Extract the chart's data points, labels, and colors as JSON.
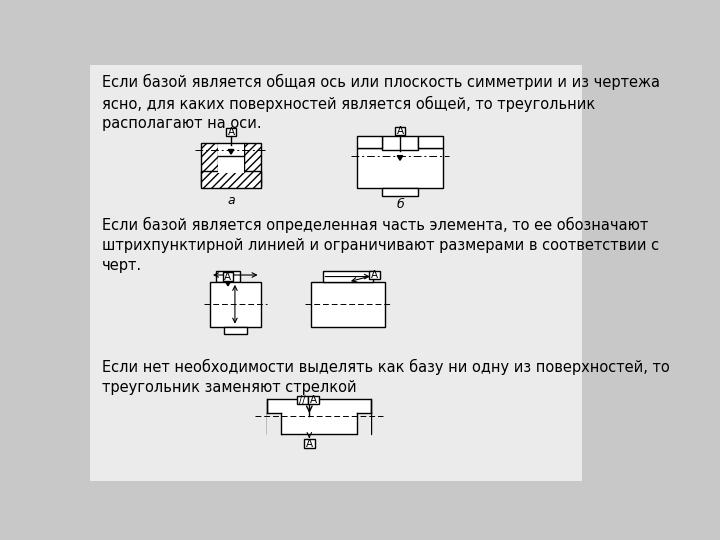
{
  "bg_color": "#c8c8c8",
  "content_bg": "#ebebeb",
  "text_color": "#000000",
  "title1": "Если базой является общая ось или плоскость симметрии и из чертежа\nясно, для каких поверхностей является общей, то треугольник\nрасполагают на оси.",
  "title2": "Если базой является определенная часть элемента, то ее обозначают\nштрихпунктирной линией и ограничивают размерами в соответствии с\nчерт.",
  "title3": "Если нет необходимости выделять как базу ни одну из поверхностей, то\nтреугольник заменяют стрелкой",
  "label_a": "а",
  "label_b": "б",
  "font_size": 10.5
}
